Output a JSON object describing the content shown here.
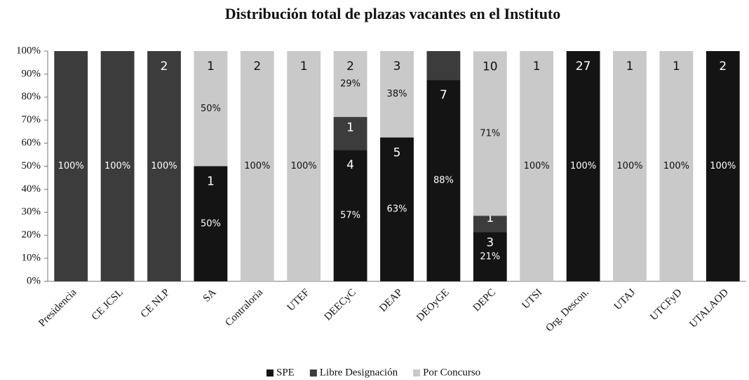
{
  "chart_data": {
    "type": "stacked_bar_100",
    "title": "Distribución total de plazas vacantes en el Instituto",
    "categories": [
      "Presidencia",
      "CE JCSL",
      "CE NLP",
      "SA",
      "Contraloria",
      "UTEF",
      "DEECyC",
      "DEAP",
      "DEOyGE",
      "DEPC",
      "UTSI",
      "Org. Descon.",
      "UTAJ",
      "UTCFyD",
      "UTALAOD"
    ],
    "series": [
      {
        "name": "SPE",
        "color": "#141414",
        "values": [
          0,
          0,
          0,
          50,
          0,
          0,
          57.1,
          62.5,
          87.5,
          21.4,
          0,
          100,
          0,
          0,
          100
        ],
        "value_labels": [
          null,
          null,
          null,
          "50%",
          null,
          null,
          "57%",
          "63%",
          "88%",
          "21%",
          null,
          "100%",
          null,
          null,
          "100%"
        ],
        "counts": [
          null,
          null,
          null,
          1,
          null,
          null,
          4,
          5,
          7,
          3,
          null,
          27,
          null,
          null,
          2
        ]
      },
      {
        "name": "Libre Designación",
        "color": "#3c3c3c",
        "values": [
          100,
          100,
          100,
          0,
          0,
          0,
          14.3,
          0,
          12.5,
          7.1,
          0,
          0,
          0,
          0,
          0
        ],
        "value_labels": [
          "100%",
          "100%",
          "100%",
          null,
          null,
          null,
          null,
          null,
          null,
          null,
          null,
          null,
          null,
          null,
          null
        ],
        "counts": [
          null,
          null,
          2,
          null,
          null,
          null,
          1,
          null,
          null,
          1,
          null,
          null,
          null,
          null,
          null
        ]
      },
      {
        "name": "Por Concurso",
        "color": "#c9c9c9",
        "values": [
          0,
          0,
          0,
          50,
          100,
          100,
          28.6,
          37.5,
          0,
          71.4,
          100,
          0,
          100,
          100,
          0
        ],
        "value_labels": [
          null,
          null,
          null,
          "50%",
          "100%",
          "100%",
          "29%",
          "38%",
          null,
          "71%",
          "100%",
          null,
          "100%",
          "100%",
          null
        ],
        "counts": [
          null,
          null,
          null,
          1,
          2,
          1,
          2,
          3,
          null,
          10,
          1,
          null,
          1,
          1,
          null
        ]
      }
    ],
    "ylim": [
      0,
      100
    ],
    "yticks": [
      {
        "value": 0,
        "label": "0%"
      },
      {
        "value": 10,
        "label": "10%"
      },
      {
        "value": 20,
        "label": "20%"
      },
      {
        "value": 30,
        "label": "30%"
      },
      {
        "value": 40,
        "label": "40%"
      },
      {
        "value": 50,
        "label": "50%"
      },
      {
        "value": 60,
        "label": "60%"
      },
      {
        "value": 70,
        "label": "70%"
      },
      {
        "value": 80,
        "label": "80%"
      },
      {
        "value": 90,
        "label": "90%"
      },
      {
        "value": 100,
        "label": "100%"
      }
    ],
    "legend": "bottom"
  }
}
